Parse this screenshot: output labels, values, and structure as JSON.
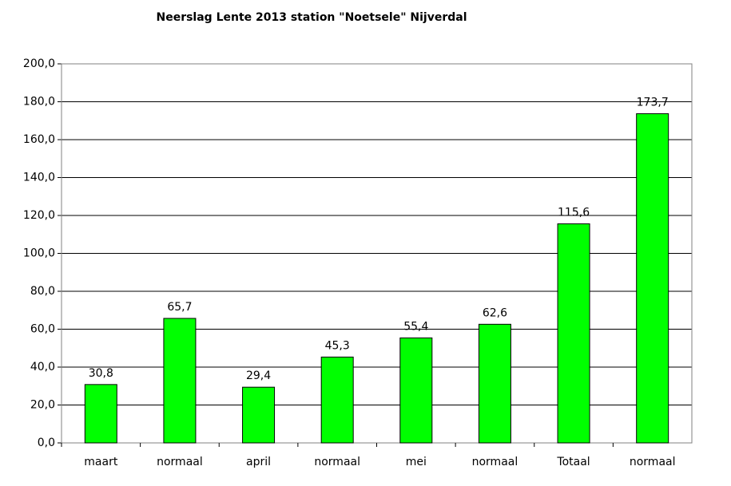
{
  "chart_data": {
    "type": "bar",
    "title": "Neerslag Lente 2013 station \"Noetsele\" Nijverdal",
    "categories": [
      "maart",
      "normaal",
      "april",
      "normaal",
      "mei",
      "normaal",
      "Totaal",
      "normaal"
    ],
    "values": [
      30.8,
      65.7,
      29.4,
      45.3,
      55.4,
      62.6,
      115.6,
      173.7
    ],
    "value_labels": [
      "30,8",
      "65,7",
      "29,4",
      "45,3",
      "55,4",
      "62,6",
      "115,6",
      "173,7"
    ],
    "color": "#00ff00",
    "ylim": [
      0,
      200
    ],
    "yticks": [
      {
        "value": 0,
        "label": "0,0"
      },
      {
        "value": 20,
        "label": "20,0"
      },
      {
        "value": 40,
        "label": "40,0"
      },
      {
        "value": 60,
        "label": "60,0"
      },
      {
        "value": 80,
        "label": "80,0"
      },
      {
        "value": 100,
        "label": "100,0"
      },
      {
        "value": 120,
        "label": "120,0"
      },
      {
        "value": 140,
        "label": "140,0"
      },
      {
        "value": 160,
        "label": "160,0"
      },
      {
        "value": 180,
        "label": "180,0"
      },
      {
        "value": 200,
        "label": "200,0"
      }
    ],
    "grid": true
  }
}
